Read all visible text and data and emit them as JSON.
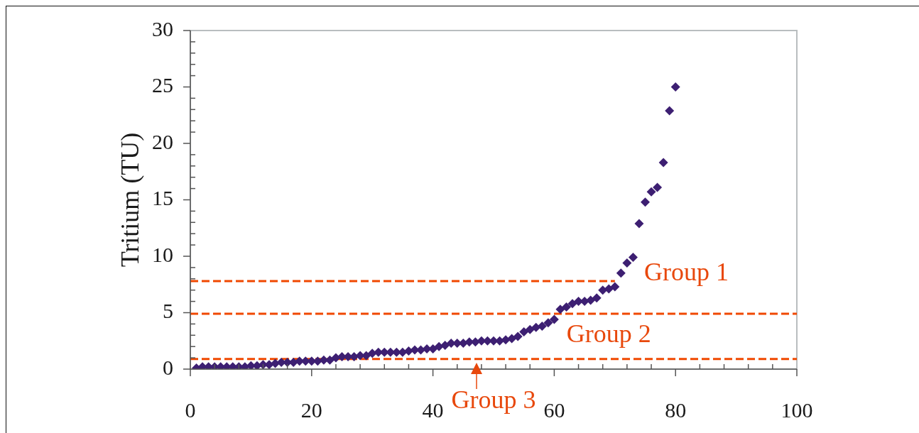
{
  "chart_data": {
    "type": "scatter",
    "ylabel": "Tritium (TU)",
    "x": [
      1,
      2,
      3,
      4,
      5,
      6,
      7,
      8,
      9,
      10,
      11,
      12,
      13,
      14,
      15,
      16,
      17,
      18,
      19,
      20,
      21,
      22,
      23,
      24,
      25,
      26,
      27,
      28,
      29,
      30,
      31,
      32,
      33,
      34,
      35,
      36,
      37,
      38,
      39,
      40,
      41,
      42,
      43,
      44,
      45,
      46,
      47,
      48,
      49,
      50,
      51,
      52,
      53,
      54,
      55,
      56,
      57,
      58,
      59,
      60,
      61,
      62,
      63,
      64,
      65,
      66,
      67,
      68,
      69,
      70,
      71,
      72,
      73,
      74,
      75,
      76,
      77,
      78,
      79,
      80
    ],
    "series": [
      {
        "color": "#3d1f72",
        "values": [
          0.1,
          0.2,
          0.2,
          0.2,
          0.2,
          0.2,
          0.2,
          0.2,
          0.2,
          0.3,
          0.3,
          0.4,
          0.4,
          0.5,
          0.6,
          0.6,
          0.6,
          0.7,
          0.7,
          0.7,
          0.7,
          0.8,
          0.8,
          1.0,
          1.1,
          1.1,
          1.1,
          1.2,
          1.2,
          1.4,
          1.5,
          1.5,
          1.5,
          1.5,
          1.5,
          1.6,
          1.7,
          1.7,
          1.8,
          1.8,
          2.0,
          2.1,
          2.3,
          2.3,
          2.3,
          2.4,
          2.4,
          2.5,
          2.5,
          2.5,
          2.5,
          2.6,
          2.7,
          2.9,
          3.3,
          3.5,
          3.7,
          3.8,
          4.1,
          4.4,
          5.3,
          5.5,
          5.8,
          6.0,
          6.0,
          6.1,
          6.3,
          7.0,
          7.1,
          7.3,
          8.5,
          9.4,
          9.9,
          12.9,
          14.8,
          15.7,
          16.1,
          18.3,
          22.9,
          25.0
        ]
      },
      {
        "type": "line",
        "color": "#f04800",
        "line_style": "dashed",
        "marker": "none",
        "x": [
          0,
          70
        ],
        "values": [
          7.8,
          7.8
        ]
      }
    ],
    "marker": "diamond",
    "xlim": [
      0,
      100
    ],
    "xticks": [
      0,
      {
        "value": 4,
        "label": null
      },
      {
        "value": 8,
        "label": null
      },
      {
        "value": 12,
        "label": null
      },
      {
        "value": 16,
        "label": null
      },
      20,
      {
        "value": 24,
        "label": null
      },
      {
        "value": 28,
        "label": null
      },
      {
        "value": 32,
        "label": null
      },
      {
        "value": 36,
        "label": null
      },
      40,
      {
        "value": 44,
        "label": null
      },
      {
        "value": 48,
        "label": null
      },
      {
        "value": 52,
        "label": null
      },
      {
        "value": 56,
        "label": null
      },
      60,
      {
        "value": 64,
        "label": null
      },
      {
        "value": 68,
        "label": null
      },
      {
        "value": 72,
        "label": null
      },
      {
        "value": 76,
        "label": null
      },
      80,
      {
        "value": 84,
        "label": null
      },
      {
        "value": 88,
        "label": null
      },
      {
        "value": 92,
        "label": null
      },
      {
        "value": 96,
        "label": null
      },
      100
    ],
    "ylim": [
      0,
      30
    ],
    "yticks": [
      0,
      {
        "value": 1,
        "label": null
      },
      {
        "value": 2,
        "label": null
      },
      {
        "value": 3,
        "label": null
      },
      {
        "value": 4,
        "label": null
      },
      5,
      {
        "value": 6,
        "label": null
      },
      {
        "value": 7,
        "label": null
      },
      {
        "value": 8,
        "label": null
      },
      {
        "value": 9,
        "label": null
      },
      10,
      {
        "value": 11,
        "label": null
      },
      {
        "value": 12,
        "label": null
      },
      {
        "value": 13,
        "label": null
      },
      {
        "value": 14,
        "label": null
      },
      15,
      {
        "value": 16,
        "label": null
      },
      {
        "value": 17,
        "label": null
      },
      {
        "value": 18,
        "label": null
      },
      {
        "value": 19,
        "label": null
      },
      20,
      {
        "value": 21,
        "label": null
      },
      {
        "value": 22,
        "label": null
      },
      {
        "value": 23,
        "label": null
      },
      {
        "value": 24,
        "label": null
      },
      25,
      {
        "value": 26,
        "label": null
      },
      {
        "value": 27,
        "label": null
      },
      {
        "value": 28,
        "label": null
      },
      {
        "value": 29,
        "label": null
      },
      30
    ],
    "ref_lines": [
      {
        "axis": "y",
        "value": 4.9,
        "color": "#f04800",
        "line_style": "dashed"
      },
      {
        "axis": "y",
        "value": 0.9,
        "color": "#f04800",
        "line_style": "dashed"
      }
    ],
    "annotations": [
      "Group 1",
      "Group 2",
      "Group 3"
    ]
  }
}
